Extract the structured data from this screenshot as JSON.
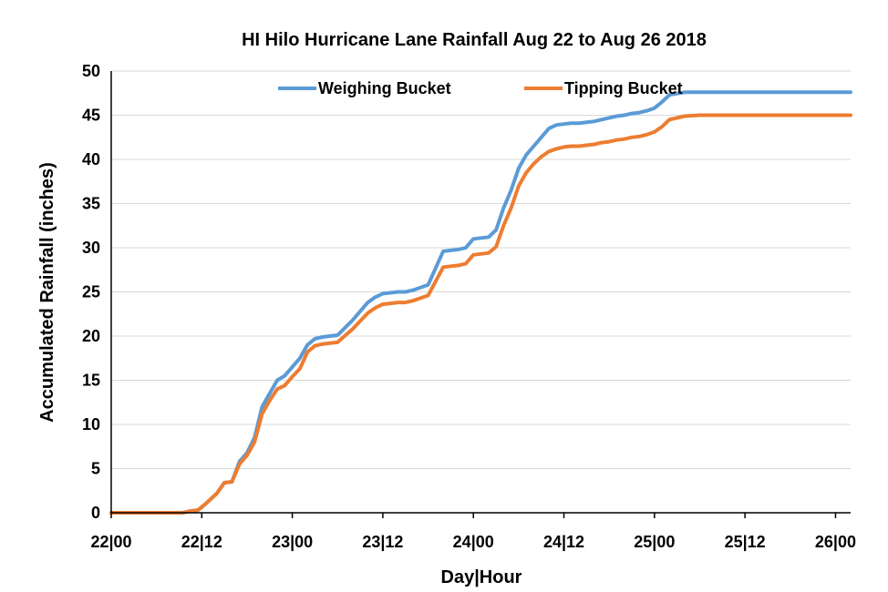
{
  "chart_data": {
    "type": "line",
    "title": "HI Hilo Hurricane Lane Rainfall Aug 22 to Aug 26 2018",
    "xlabel": "Day|Hour",
    "ylabel": "Accumulated Rainfall (inches)",
    "ylim": [
      0,
      50
    ],
    "xlim": [
      0,
      98
    ],
    "x_tick_values": [
      0,
      12,
      24,
      36,
      48,
      60,
      72,
      84,
      96
    ],
    "x_tick_labels": [
      "22|00",
      "22|12",
      "23|00",
      "23|12",
      "24|00",
      "24|12",
      "25|00",
      "25|12",
      "26|00"
    ],
    "y_ticks": [
      0,
      5,
      10,
      15,
      20,
      25,
      30,
      35,
      40,
      45,
      50
    ],
    "grid": true,
    "legend_position": "top",
    "series": [
      {
        "name": "Weighing Bucket",
        "color": "#5b9bd5",
        "x": [
          0,
          9.5,
          10.5,
          11.5,
          12.5,
          14,
          15,
          16,
          17,
          18,
          19,
          20,
          21,
          22,
          23,
          24,
          25,
          26,
          27,
          28,
          29,
          30,
          32,
          34,
          35,
          36,
          37,
          38,
          39,
          40,
          42,
          44,
          46,
          47,
          48,
          49,
          50,
          51,
          52,
          53,
          54,
          55,
          56,
          57,
          58,
          59,
          60,
          61,
          62,
          63,
          64,
          65,
          66,
          67,
          68,
          69,
          70,
          71,
          72,
          73,
          74,
          76,
          78,
          80,
          82,
          84,
          86,
          88,
          90,
          92,
          93,
          94,
          95,
          96,
          97,
          98
        ],
        "values": [
          0,
          0,
          0.2,
          0.3,
          1.0,
          2.2,
          3.4,
          3.5,
          5.8,
          6.8,
          8.5,
          12.0,
          13.5,
          15.0,
          15.5,
          16.5,
          17.5,
          19.0,
          19.7,
          19.9,
          20.0,
          20.1,
          21.8,
          23.8,
          24.4,
          24.8,
          24.9,
          25.0,
          25.0,
          25.2,
          25.8,
          29.6,
          29.8,
          30.0,
          31.0,
          31.1,
          31.2,
          32.0,
          34.5,
          36.5,
          39.0,
          40.5,
          41.5,
          42.5,
          43.5,
          43.9,
          44.0,
          44.1,
          44.1,
          44.2,
          44.3,
          44.5,
          44.7,
          44.9,
          45.0,
          45.2,
          45.3,
          45.5,
          45.8,
          46.5,
          47.3,
          47.6,
          47.6,
          47.6,
          47.6,
          47.6,
          47.6,
          47.6,
          47.6,
          47.6,
          47.6,
          47.6,
          47.6,
          47.6,
          47.6,
          47.6
        ]
      },
      {
        "name": "Tipping Bucket",
        "color": "#ed7d31",
        "x": [
          0,
          9.5,
          10.5,
          11.5,
          12.5,
          14,
          15,
          16,
          17,
          18,
          19,
          20,
          21,
          22,
          23,
          24,
          25,
          26,
          27,
          28,
          29,
          30,
          32,
          34,
          35,
          36,
          37,
          38,
          39,
          40,
          42,
          44,
          46,
          47,
          48,
          49,
          50,
          51,
          52,
          53,
          54,
          55,
          56,
          57,
          58,
          59,
          60,
          61,
          62,
          63,
          64,
          65,
          66,
          67,
          68,
          69,
          70,
          71,
          72,
          73,
          74,
          76,
          78,
          80,
          82,
          84,
          86,
          88,
          90,
          92,
          93,
          94,
          95,
          96,
          97,
          98
        ],
        "values": [
          0,
          0,
          0.2,
          0.3,
          1.0,
          2.2,
          3.4,
          3.5,
          5.5,
          6.5,
          8.0,
          11.2,
          12.7,
          14.0,
          14.4,
          15.4,
          16.3,
          18.2,
          18.9,
          19.1,
          19.2,
          19.3,
          20.8,
          22.6,
          23.2,
          23.6,
          23.7,
          23.8,
          23.8,
          24.0,
          24.6,
          27.8,
          28.0,
          28.2,
          29.2,
          29.3,
          29.4,
          30.1,
          32.5,
          34.5,
          37.0,
          38.5,
          39.5,
          40.3,
          40.9,
          41.2,
          41.4,
          41.5,
          41.5,
          41.6,
          41.7,
          41.9,
          42.0,
          42.2,
          42.3,
          42.5,
          42.6,
          42.8,
          43.1,
          43.7,
          44.5,
          44.9,
          45.0,
          45.0,
          45.0,
          45.0,
          45.0,
          45.0,
          45.0,
          45.0,
          45.0,
          45.0,
          45.0,
          45.0,
          45.0,
          45.0
        ]
      }
    ]
  }
}
